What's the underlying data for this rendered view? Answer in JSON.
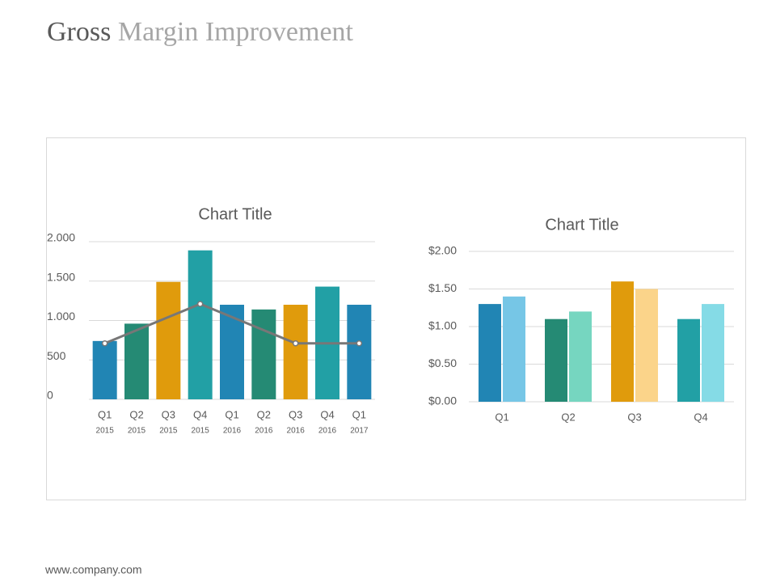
{
  "header": {
    "title_dark": "Gross",
    "title_light": "Margin Improvement"
  },
  "footer": "www.company.com",
  "chart_data": [
    {
      "type": "bar_line",
      "title": "Chart Title",
      "categories": [
        "Q1",
        "Q2",
        "Q3",
        "Q4",
        "Q1",
        "Q2",
        "Q3",
        "Q4",
        "Q1"
      ],
      "category_years": [
        "2015",
        "2015",
        "2015",
        "2015",
        "2016",
        "2016",
        "2016",
        "2016",
        "2017"
      ],
      "ylim": [
        0,
        2000
      ],
      "yticks": [
        0,
        500,
        {
          "value": 1000,
          "label": "1.000"
        },
        {
          "value": 1500,
          "label": "1.500"
        },
        {
          "value": 2000,
          "label": "2.000"
        }
      ],
      "grid": true,
      "series": [
        {
          "type": "bar",
          "colors": [
            "#2185b4",
            "#258a74",
            "#e09b0c",
            "#22a0a5",
            "#2185b4",
            "#258a74",
            "#e09b0c",
            "#22a0a5",
            "#2185b4"
          ],
          "values": [
            740,
            960,
            1490,
            1890,
            1200,
            1140,
            1200,
            1430,
            1200
          ]
        },
        {
          "type": "line",
          "color": "#777777",
          "x": [
            0,
            3,
            6,
            8
          ],
          "values": [
            710,
            1210,
            710,
            710
          ]
        }
      ]
    },
    {
      "type": "grouped_bar",
      "title": "Chart Title",
      "categories": [
        "Q1",
        "Q2",
        "Q3",
        "Q4"
      ],
      "ylim": [
        0,
        2
      ],
      "yticks": [
        {
          "value": 0,
          "label": "$0.00"
        },
        {
          "value": 0.5,
          "label": "$0.50"
        },
        {
          "value": 1,
          "label": "$1.00"
        },
        {
          "value": 1.5,
          "label": "$1.50"
        },
        {
          "value": 2,
          "label": "$2.00"
        }
      ],
      "grid": true,
      "series": [
        {
          "colors": [
            "#2185b4",
            "#258a74",
            "#e09b0c",
            "#22a0a5"
          ],
          "values": [
            1.3,
            1.1,
            1.6,
            1.1
          ]
        },
        {
          "colors": [
            "#76c6e6",
            "#76d6c0",
            "#fbd48a",
            "#85dbe6"
          ],
          "values": [
            1.4,
            1.2,
            1.5,
            1.3
          ]
        }
      ]
    }
  ]
}
